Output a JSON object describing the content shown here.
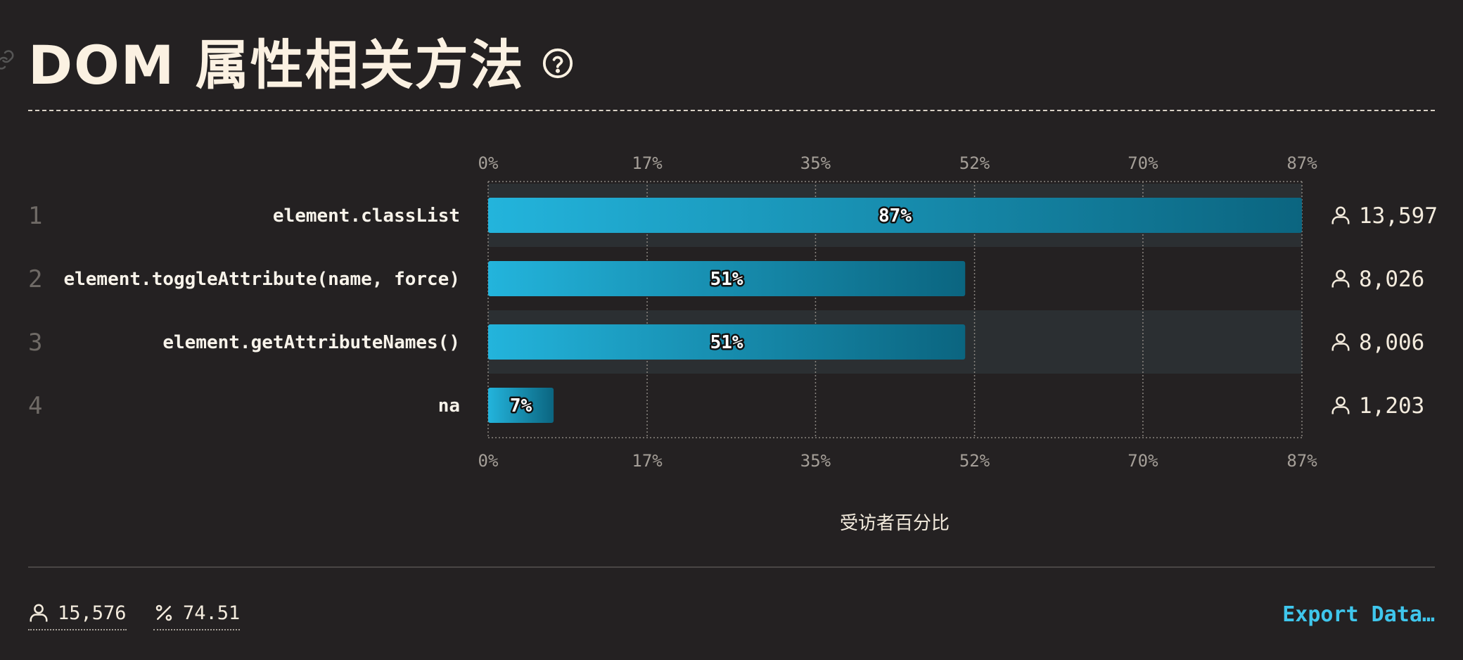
{
  "header": {
    "title": "DOM 属性相关方法",
    "help_icon": "help-circle-icon",
    "anchor_icon": "link-icon"
  },
  "chart_data": {
    "type": "bar",
    "orientation": "horizontal",
    "xlabel": "受访者百分比",
    "xlim": [
      0,
      87
    ],
    "x_ticks": [
      "0%",
      "17%",
      "35%",
      "52%",
      "70%",
      "87%"
    ],
    "categories": [
      "element.classList",
      "element.toggleAttribute(name, force)",
      "element.getAttributeNames()",
      "na"
    ],
    "ranks": [
      "1",
      "2",
      "3",
      "4"
    ],
    "values": [
      87,
      51,
      51,
      7
    ],
    "value_labels": [
      "87%",
      "51%",
      "51%",
      "7%"
    ],
    "counts": [
      "13,597",
      "8,026",
      "8,006",
      "1,203"
    ],
    "count_icon": "user-icon",
    "colors": {
      "bar_start": "#23b4dc",
      "bar_end": "#0b6580",
      "row_band": "#2b2f32",
      "grid": "#8a8580"
    },
    "grid": true
  },
  "footer": {
    "total_respondents": "15,576",
    "percentage": "74.51",
    "user_icon": "user-icon",
    "percent_icon": "percent-icon",
    "export_label": "Export Data…"
  }
}
